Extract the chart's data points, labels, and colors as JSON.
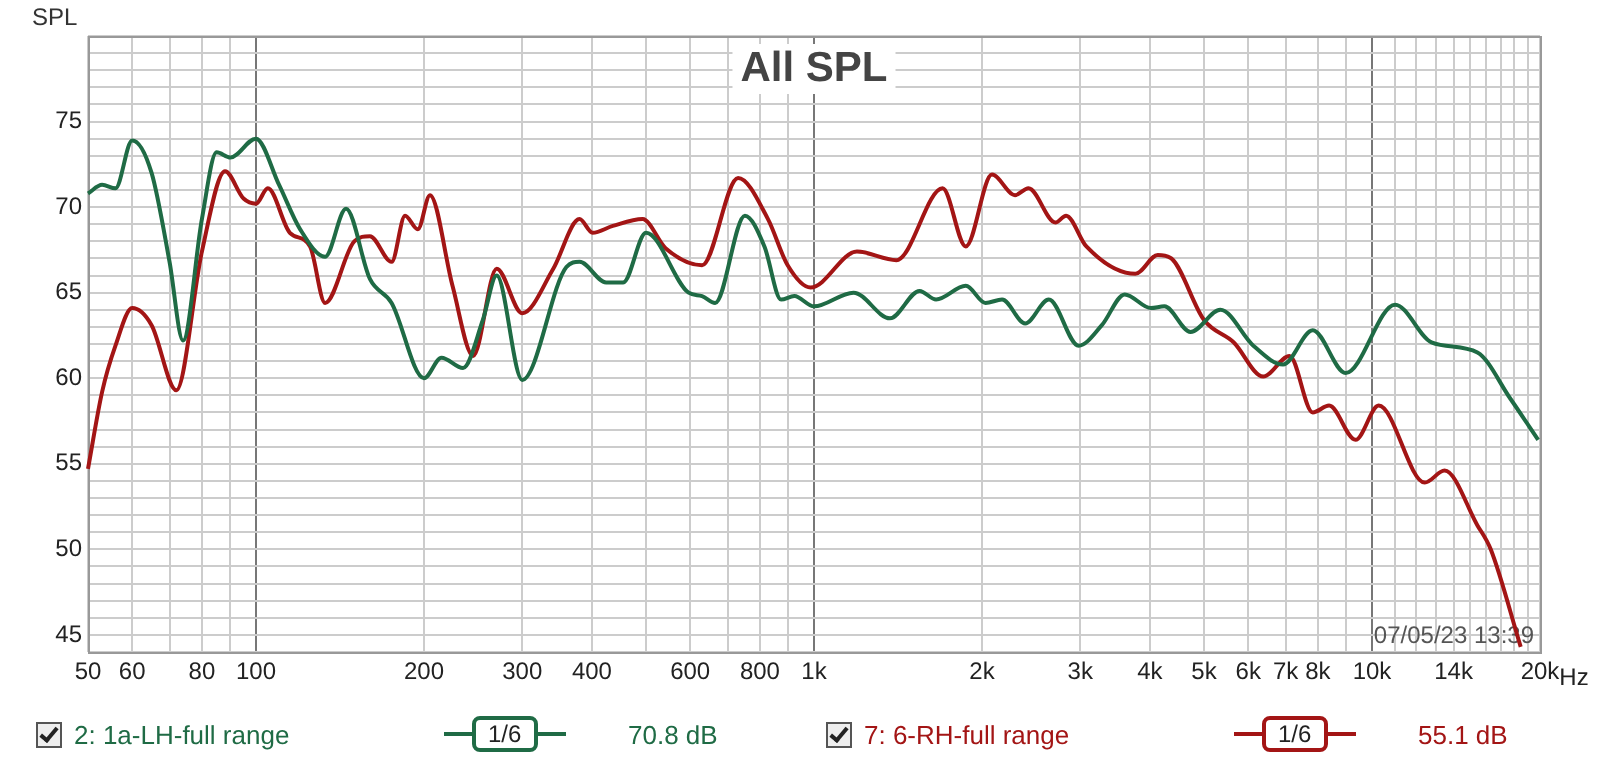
{
  "chart_data": {
    "type": "line",
    "title": "All SPL",
    "ylabel": "SPL",
    "xlabel": "Hz",
    "annotations": [
      "07/05/23 13:39",
      "1/6",
      "70.8 dB",
      "1/6",
      "55.1 dB"
    ],
    "xlim": [
      50,
      20000
    ],
    "ylim": [
      44,
      80
    ],
    "log": "x",
    "grid": true,
    "legend": "bottom",
    "marker": "none",
    "line_style": "solid",
    "xticks": [
      50,
      60,
      {
        "value": 70,
        "label": null
      },
      80,
      {
        "value": 90,
        "label": null
      },
      100,
      200,
      300,
      400,
      {
        "value": 500,
        "label": null
      },
      600,
      {
        "value": 700,
        "label": null
      },
      800,
      {
        "value": 900,
        "label": null
      },
      {
        "value": 1000,
        "label": "1k"
      },
      {
        "value": 2000,
        "label": "2k"
      },
      {
        "value": 3000,
        "label": "3k"
      },
      {
        "value": 4000,
        "label": "4k"
      },
      {
        "value": 5000,
        "label": "5k"
      },
      {
        "value": 6000,
        "label": "6k"
      },
      {
        "value": 7000,
        "label": "7k"
      },
      {
        "value": 8000,
        "label": "8k"
      },
      {
        "value": 9000,
        "label": null
      },
      {
        "value": 10000,
        "label": "10k"
      },
      {
        "value": 11000,
        "label": null
      },
      {
        "value": 12000,
        "label": null
      },
      {
        "value": 13000,
        "label": null
      },
      {
        "value": 14000,
        "label": "14k"
      },
      {
        "value": 15000,
        "label": null
      },
      {
        "value": 16000,
        "label": null
      },
      {
        "value": 17000,
        "label": null
      },
      {
        "value": 18000,
        "label": null
      },
      {
        "value": 19000,
        "label": null
      },
      {
        "value": 20000,
        "label": "20k"
      }
    ],
    "yticks": [
      {
        "value": 44,
        "label": null
      },
      45,
      {
        "value": 46,
        "label": null
      },
      {
        "value": 47,
        "label": null
      },
      {
        "value": 48,
        "label": null
      },
      {
        "value": 49,
        "label": null
      },
      50,
      {
        "value": 51,
        "label": null
      },
      {
        "value": 52,
        "label": null
      },
      {
        "value": 53,
        "label": null
      },
      {
        "value": 54,
        "label": null
      },
      55,
      {
        "value": 56,
        "label": null
      },
      {
        "value": 57,
        "label": null
      },
      {
        "value": 58,
        "label": null
      },
      {
        "value": 59,
        "label": null
      },
      60,
      {
        "value": 61,
        "label": null
      },
      {
        "value": 62,
        "label": null
      },
      {
        "value": 63,
        "label": null
      },
      {
        "value": 64,
        "label": null
      },
      65,
      {
        "value": 66,
        "label": null
      },
      {
        "value": 67,
        "label": null
      },
      {
        "value": 68,
        "label": null
      },
      {
        "value": 69,
        "label": null
      },
      70,
      {
        "value": 71,
        "label": null
      },
      {
        "value": 72,
        "label": null
      },
      {
        "value": 73,
        "label": null
      },
      {
        "value": 74,
        "label": null
      },
      75,
      {
        "value": 76,
        "label": null
      },
      {
        "value": 77,
        "label": null
      },
      {
        "value": 78,
        "label": null
      },
      {
        "value": 79,
        "label": null
      },
      {
        "value": 80,
        "label": null
      }
    ],
    "series": [
      {
        "name": "2: 1a-LH-full range",
        "color": "#1f6b45",
        "x": [
          50,
          53,
          56,
          60,
          65,
          70,
          74,
          80,
          85,
          90,
          100,
          110,
          120,
          133,
          145,
          160,
          175,
          200,
          215,
          235,
          255,
          270,
          300,
          360,
          380,
          424,
          455,
          500,
          596,
          630,
          665,
          752,
          815,
          873,
          922,
          1000,
          1177,
          1368,
          1546,
          1655,
          1871,
          2029,
          2173,
          2390,
          2635,
          2980,
          3280,
          3604,
          4015,
          4245,
          4729,
          5347,
          6128,
          6925,
          7830,
          8968,
          11000,
          12780,
          15450,
          17700,
          19850
        ],
        "values": [
          70.8,
          71.3,
          71.1,
          73.9,
          72,
          66.8,
          62.2,
          69.3,
          73.2,
          72.9,
          74,
          71.3,
          68.7,
          67.1,
          69.9,
          65.8,
          64.4,
          60,
          61.2,
          60.6,
          63.4,
          66,
          59.9,
          66.5,
          66.8,
          65.6,
          65.6,
          68.5,
          65,
          64.8,
          64.4,
          69.5,
          67.7,
          64.6,
          64.8,
          64.2,
          65,
          63.5,
          65.1,
          64.6,
          65.4,
          64.4,
          64.6,
          63.2,
          64.6,
          61.9,
          63.1,
          64.9,
          64.1,
          64.2,
          62.7,
          64,
          61.9,
          60.8,
          62.8,
          60.3,
          64.3,
          62.1,
          61.5,
          58.8,
          56.4
        ]
      },
      {
        "name": "7: 6-RH-full range",
        "color": "#a31515",
        "x": [
          50,
          53,
          56,
          60,
          65,
          72,
          80,
          88,
          95,
          100,
          105,
          115,
          125,
          133,
          150,
          160,
          175,
          185,
          195,
          205,
          225,
          245,
          270,
          300,
          341,
          380,
          401,
          436,
          493,
          542,
          630,
          731,
          827,
          897,
          986,
          1194,
          1405,
          1700,
          1871,
          2084,
          2292,
          2423,
          2708,
          2830,
          3077,
          3766,
          4131,
          4368,
          5000,
          5648,
          6384,
          7116,
          7830,
          8377,
          9342,
          10280,
          12430,
          13490,
          15450,
          16320,
          18470
        ],
        "values": [
          54.7,
          59.2,
          61.9,
          64.1,
          63.1,
          59.3,
          67.4,
          72.1,
          70.5,
          70.2,
          71.1,
          68.5,
          67.7,
          64.4,
          68,
          68.3,
          66.8,
          69.5,
          68.7,
          70.7,
          65.4,
          61.3,
          66.4,
          63.8,
          66.4,
          69.3,
          68.5,
          68.9,
          69.3,
          67.6,
          66.6,
          71.7,
          69.3,
          66.6,
          65.3,
          67.4,
          66.9,
          71.1,
          67.7,
          71.9,
          70.7,
          71.1,
          69.1,
          69.5,
          67.7,
          66.1,
          67.2,
          67,
          63.4,
          62.1,
          60.1,
          61.3,
          58,
          58.4,
          56.4,
          58.4,
          53.9,
          54.6,
          51.4,
          50,
          44.3
        ]
      }
    ]
  }
}
